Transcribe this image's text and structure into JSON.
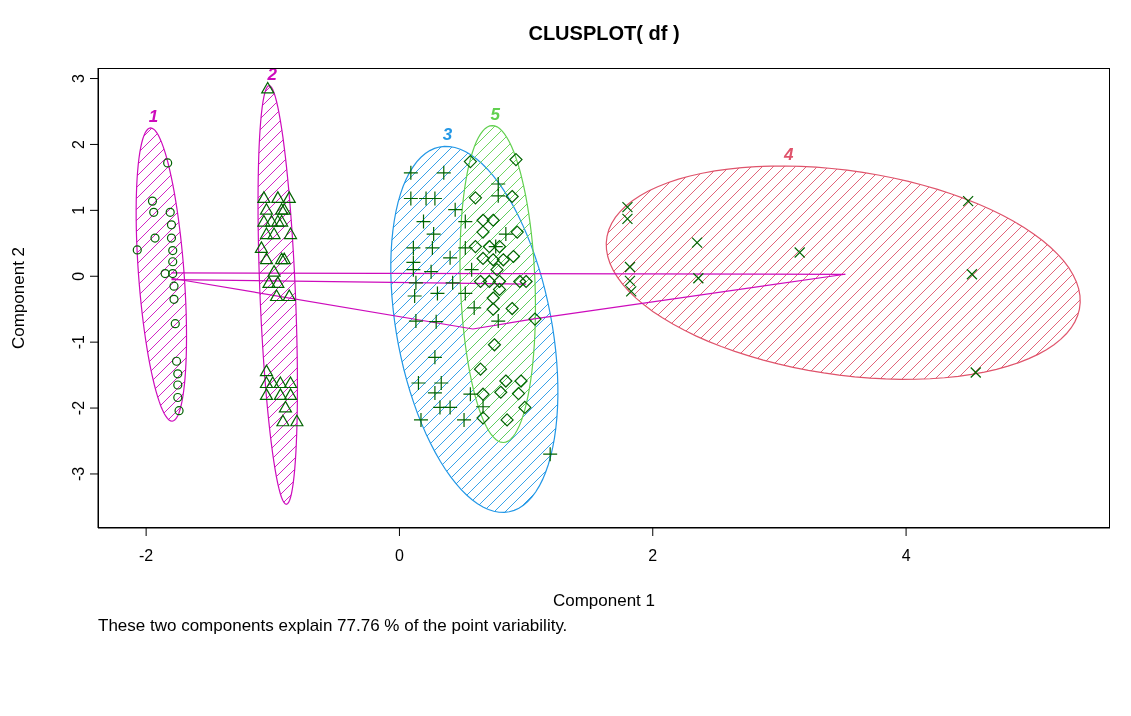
{
  "chart_data": {
    "type": "scatter",
    "title": "CLUSPLOT( df )",
    "xlabel": "Component 1",
    "ylabel": "Component 2",
    "annotations": [
      "1",
      "2",
      "3",
      "4",
      "5",
      "These two components explain 77.76 % of the point variability."
    ],
    "xlim": [
      -2.38,
      5.61
    ],
    "ylim": [
      -3.82,
      3.16
    ],
    "xticks": [
      -2,
      0,
      2,
      4
    ],
    "yticks": [
      -3,
      -2,
      -1,
      0,
      1,
      2,
      3
    ],
    "series": [
      {
        "type": "line",
        "color": "#cd0bbc",
        "marker": "none",
        "x": [
          -1.8,
          3.52
        ],
        "values": [
          0.05,
          0.03
        ]
      },
      {
        "type": "line",
        "color": "#cd0bbc",
        "marker": "none",
        "x": [
          -1.8,
          0.58,
          1.05,
          3.52
        ],
        "values": [
          -0.03,
          -0.8,
          -0.65,
          0.03
        ]
      },
      {
        "type": "line",
        "color": "#cd0bbc",
        "marker": "none",
        "x": [
          -1.8,
          1.0
        ],
        "values": [
          -0.05,
          -0.12
        ]
      },
      {
        "color": "#006400",
        "marker": "circle",
        "x": [
          -1.83,
          -1.95,
          -1.94,
          -1.81,
          -1.8,
          -1.93,
          -1.8,
          -2.07,
          -1.79,
          -1.79,
          -1.85,
          -1.79,
          -1.78,
          -1.78,
          -1.77,
          -1.76,
          -1.75,
          -1.75,
          -1.75,
          -1.74
        ],
        "values": [
          1.72,
          1.14,
          0.97,
          0.97,
          0.78,
          0.58,
          0.58,
          0.4,
          0.39,
          0.22,
          0.04,
          0.04,
          -0.15,
          -0.35,
          -0.72,
          -1.29,
          -1.48,
          -1.65,
          -1.84,
          -2.04
        ]
      },
      {
        "color": "#006400",
        "marker": "triangle",
        "x": [
          -1.04,
          -1.07,
          -0.96,
          -0.87,
          -1.05,
          -0.93,
          -0.91,
          -1.07,
          -1.01,
          -0.96,
          -0.93,
          -1.05,
          -0.99,
          -0.86,
          -1.09,
          -1.05,
          -0.93,
          -0.91,
          -0.99,
          -1.03,
          -0.96,
          -0.97,
          -0.87,
          -1.05,
          -1.05,
          -1.0,
          -0.94,
          -0.86,
          -1.05,
          -0.94,
          -0.86,
          -0.9,
          -0.92,
          -0.81
        ],
        "values": [
          2.85,
          1.19,
          1.19,
          1.19,
          1.01,
          1.01,
          1.01,
          0.83,
          0.83,
          0.83,
          0.83,
          0.64,
          0.64,
          0.64,
          0.43,
          0.26,
          0.26,
          0.26,
          0.07,
          -0.1,
          -0.1,
          -0.3,
          -0.3,
          -1.44,
          -1.62,
          -1.62,
          -1.62,
          -1.62,
          -1.8,
          -1.8,
          -1.8,
          -1.99,
          -2.2,
          -2.2
        ]
      },
      {
        "color": "#006400",
        "marker": "plus",
        "x": [
          0.09,
          0.35,
          0.09,
          0.21,
          0.28,
          0.44,
          0.78,
          0.78,
          0.19,
          0.27,
          0.52,
          0.84,
          0.11,
          0.26,
          0.4,
          0.11,
          0.52,
          0.76,
          0.11,
          0.25,
          0.57,
          0.13,
          0.42,
          0.12,
          0.3,
          0.52,
          0.59,
          0.13,
          0.29,
          0.78,
          0.28,
          0.15,
          0.33,
          0.28,
          0.56,
          0.32,
          0.4,
          0.17,
          0.51,
          0.66,
          1.19
        ],
        "values": [
          1.57,
          1.57,
          1.18,
          1.18,
          1.18,
          1.01,
          1.4,
          1.22,
          0.83,
          0.64,
          0.83,
          0.64,
          0.43,
          0.43,
          0.28,
          0.21,
          0.43,
          0.45,
          0.1,
          0.07,
          0.1,
          -0.1,
          -0.1,
          -0.3,
          -0.26,
          -0.26,
          -0.48,
          -0.68,
          -0.69,
          -0.68,
          -1.23,
          -1.62,
          -1.62,
          -1.77,
          -1.79,
          -1.99,
          -1.99,
          -2.18,
          -2.18,
          -1.98,
          -2.7
        ]
      },
      {
        "color": "#006400",
        "marker": "cross",
        "x": [
          1.8,
          1.8,
          2.35,
          3.16,
          1.82,
          2.36,
          1.82,
          1.83,
          4.49,
          4.52,
          4.55
        ],
        "values": [
          1.05,
          0.87,
          0.51,
          0.36,
          0.14,
          -0.03,
          -0.07,
          -0.23,
          1.14,
          0.03,
          -1.46
        ]
      },
      {
        "color": "#006400",
        "marker": "diamond",
        "x": [
          0.56,
          0.92,
          0.6,
          0.89,
          0.66,
          0.74,
          0.66,
          0.93,
          0.6,
          0.71,
          0.79,
          0.66,
          0.74,
          0.82,
          0.9,
          0.77,
          0.64,
          0.71,
          0.79,
          0.95,
          1.0,
          0.74,
          0.79,
          0.74,
          0.89,
          1.07,
          0.75,
          0.64,
          0.84,
          0.96,
          0.8,
          0.94,
          0.66,
          0.99,
          0.66,
          0.85
        ],
        "values": [
          1.74,
          1.77,
          1.19,
          1.21,
          0.85,
          0.85,
          0.67,
          0.67,
          0.45,
          0.45,
          0.45,
          0.27,
          0.25,
          0.25,
          0.3,
          0.1,
          -0.08,
          -0.08,
          -0.08,
          -0.08,
          -0.08,
          -0.33,
          -0.2,
          -0.5,
          -0.49,
          -0.65,
          -1.04,
          -1.41,
          -1.59,
          -1.59,
          -1.76,
          -1.78,
          -1.79,
          -1.99,
          -2.15,
          -2.18
        ]
      }
    ]
  }
}
